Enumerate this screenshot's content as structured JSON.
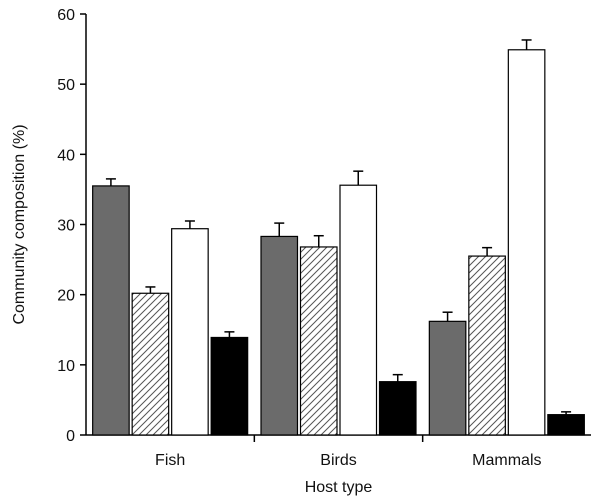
{
  "chart_data": {
    "type": "bar",
    "xlabel": "Host type",
    "ylabel": "Community composition (%)",
    "ylim": [
      0,
      60
    ],
    "yticks": [
      0,
      10,
      20,
      30,
      40,
      50,
      60
    ],
    "categories": [
      "Fish",
      "Birds",
      "Mammals"
    ],
    "series": [
      {
        "fill": "dark-gray",
        "color": "#6b6b6b",
        "values": [
          35.5,
          28.3,
          16.2
        ],
        "errors": [
          1.0,
          1.9,
          1.3
        ]
      },
      {
        "fill": "hatched",
        "color": "#555555",
        "values": [
          20.2,
          26.8,
          25.5
        ],
        "errors": [
          0.9,
          1.6,
          1.2
        ]
      },
      {
        "fill": "white",
        "color": "#ffffff",
        "values": [
          29.4,
          35.6,
          54.9
        ],
        "errors": [
          1.1,
          2.0,
          1.4
        ]
      },
      {
        "fill": "black",
        "color": "#000000",
        "values": [
          13.9,
          7.6,
          2.9
        ],
        "errors": [
          0.8,
          1.0,
          0.4
        ]
      }
    ],
    "grid": false,
    "legend": "none"
  }
}
